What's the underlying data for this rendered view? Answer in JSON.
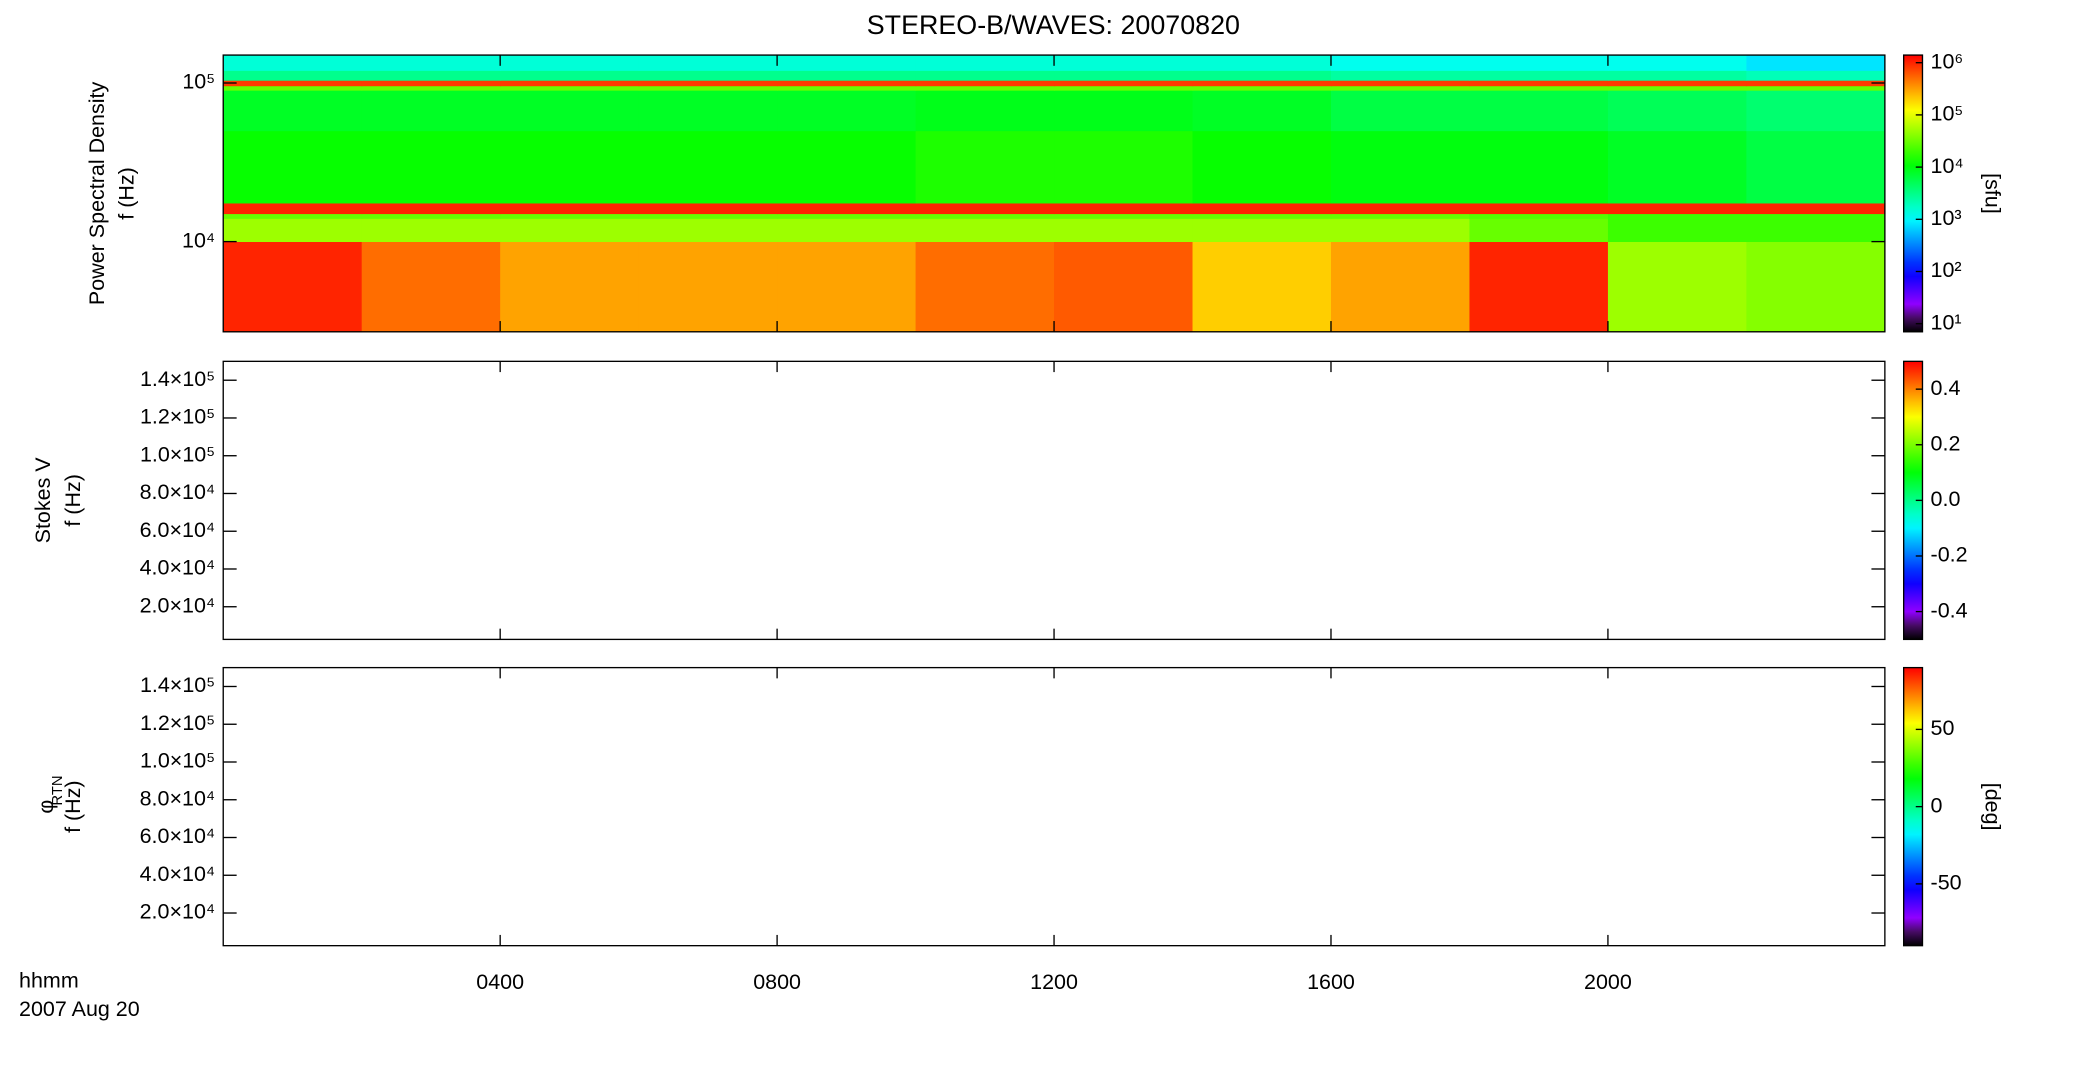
{
  "footer": {
    "x_label": "hhmm",
    "date": "2007 Aug 20"
  },
  "chart_data": [
    {
      "type": "heatmap",
      "title": "STEREO-B/WAVES: 20070820",
      "colormap": "rainbow",
      "ylabel": [
        "Power Spectral Density",
        "f (Hz)"
      ],
      "yscale": "log",
      "xlim": [
        0,
        24
      ],
      "xticks": [
        4,
        8,
        12,
        16,
        20
      ],
      "ylim": [
        2700,
        150000
      ],
      "yticks": [
        {
          "value": 10000,
          "label": "10⁴"
        },
        {
          "value": 100000,
          "label": "10⁵"
        }
      ],
      "x_bins": [
        0,
        2,
        4,
        6,
        8,
        10,
        12,
        14,
        16,
        18,
        20,
        22,
        24
      ],
      "y_bins": [
        2700,
        10000,
        14000,
        15000,
        17500,
        50000,
        90000,
        96000,
        104000,
        120000,
        150000
      ],
      "z": [
        [
          1000000,
          500000,
          300000,
          300000,
          300000,
          500000,
          600000,
          200000,
          300000,
          1000000,
          50000,
          40000
        ],
        [
          50000,
          50000,
          50000,
          50000,
          50000,
          50000,
          50000,
          50000,
          50000,
          30000,
          20000,
          20000
        ],
        [
          30000,
          30000,
          30000,
          30000,
          30000,
          30000,
          30000,
          30000,
          30000,
          25000,
          20000,
          20000
        ],
        [
          1000000,
          1000000,
          1000000,
          1000000,
          1000000,
          1000000,
          1000000,
          1000000,
          1000000,
          1000000,
          1000000,
          1000000
        ],
        [
          12000,
          12000,
          12000,
          12000,
          12000,
          15000,
          15000,
          12000,
          10000,
          10000,
          8000,
          6000
        ],
        [
          8000,
          8000,
          8000,
          8000,
          8000,
          9000,
          9000,
          8000,
          6000,
          6000,
          5000,
          4000
        ],
        [
          30000,
          30000,
          30000,
          30000,
          30000,
          30000,
          30000,
          30000,
          30000,
          30000,
          30000,
          30000
        ],
        [
          800000,
          800000,
          800000,
          800000,
          800000,
          800000,
          800000,
          800000,
          800000,
          800000,
          800000,
          800000
        ],
        [
          3000,
          3000,
          3000,
          3000,
          3000,
          3000,
          3000,
          3000,
          2500,
          2500,
          2500,
          2000
        ],
        [
          1500,
          1500,
          1500,
          1500,
          1500,
          1500,
          1500,
          1500,
          1200,
          1200,
          1200,
          800
        ]
      ],
      "clim": [
        7,
        1400000
      ],
      "cscale": "log",
      "colorbar_label": "[sfu]",
      "cticks": [
        {
          "value": 10,
          "label": "10¹"
        },
        {
          "value": 100,
          "label": "10²"
        },
        {
          "value": 1000,
          "label": "10³"
        },
        {
          "value": 10000,
          "label": "10⁴"
        },
        {
          "value": 100000,
          "label": "10⁵"
        },
        {
          "value": 1000000,
          "label": "10⁶"
        }
      ]
    },
    {
      "type": "heatmap",
      "colormap": "rainbow",
      "ylabel": [
        "Stokes V",
        "f (Hz)"
      ],
      "yscale": "linear",
      "xlim": [
        0,
        24
      ],
      "xticks": [
        4,
        8,
        12,
        16,
        20
      ],
      "ylim": [
        2700,
        150000
      ],
      "yticks": [
        {
          "value": 20000,
          "label": "2.0×10⁴"
        },
        {
          "value": 40000,
          "label": "4.0×10⁴"
        },
        {
          "value": 60000,
          "label": "6.0×10⁴"
        },
        {
          "value": 80000,
          "label": "8.0×10⁴"
        },
        {
          "value": 100000,
          "label": "1.0×10⁵"
        },
        {
          "value": 120000,
          "label": "1.2×10⁵"
        },
        {
          "value": 140000,
          "label": "1.4×10⁵"
        }
      ],
      "clim": [
        -0.5,
        0.5
      ],
      "cscale": "linear",
      "cticks": [
        -0.4,
        -0.2,
        {
          "value": 0,
          "label": "0.0"
        },
        0.2,
        0.4
      ]
    },
    {
      "type": "heatmap",
      "colormap": "rainbow",
      "ylabel": [
        "φ",
        "f (Hz)"
      ],
      "ylabel_subscript": "RTN",
      "yscale": "linear",
      "xlim": [
        0,
        24
      ],
      "xticks": [
        {
          "value": 4,
          "label": "0400"
        },
        {
          "value": 8,
          "label": "0800"
        },
        {
          "value": 12,
          "label": "1200"
        },
        {
          "value": 16,
          "label": "1600"
        },
        {
          "value": 20,
          "label": "2000"
        }
      ],
      "ylim": [
        2700,
        150000
      ],
      "yticks": [
        {
          "value": 20000,
          "label": "2.0×10⁴"
        },
        {
          "value": 40000,
          "label": "4.0×10⁴"
        },
        {
          "value": 60000,
          "label": "6.0×10⁴"
        },
        {
          "value": 80000,
          "label": "8.0×10⁴"
        },
        {
          "value": 100000,
          "label": "1.0×10⁵"
        },
        {
          "value": 120000,
          "label": "1.2×10⁵"
        },
        {
          "value": 140000,
          "label": "1.4×10⁵"
        }
      ],
      "clim": [
        -90,
        90
      ],
      "cscale": "linear",
      "colorbar_label": "[deg]",
      "cticks": [
        -50,
        0,
        50
      ]
    }
  ]
}
